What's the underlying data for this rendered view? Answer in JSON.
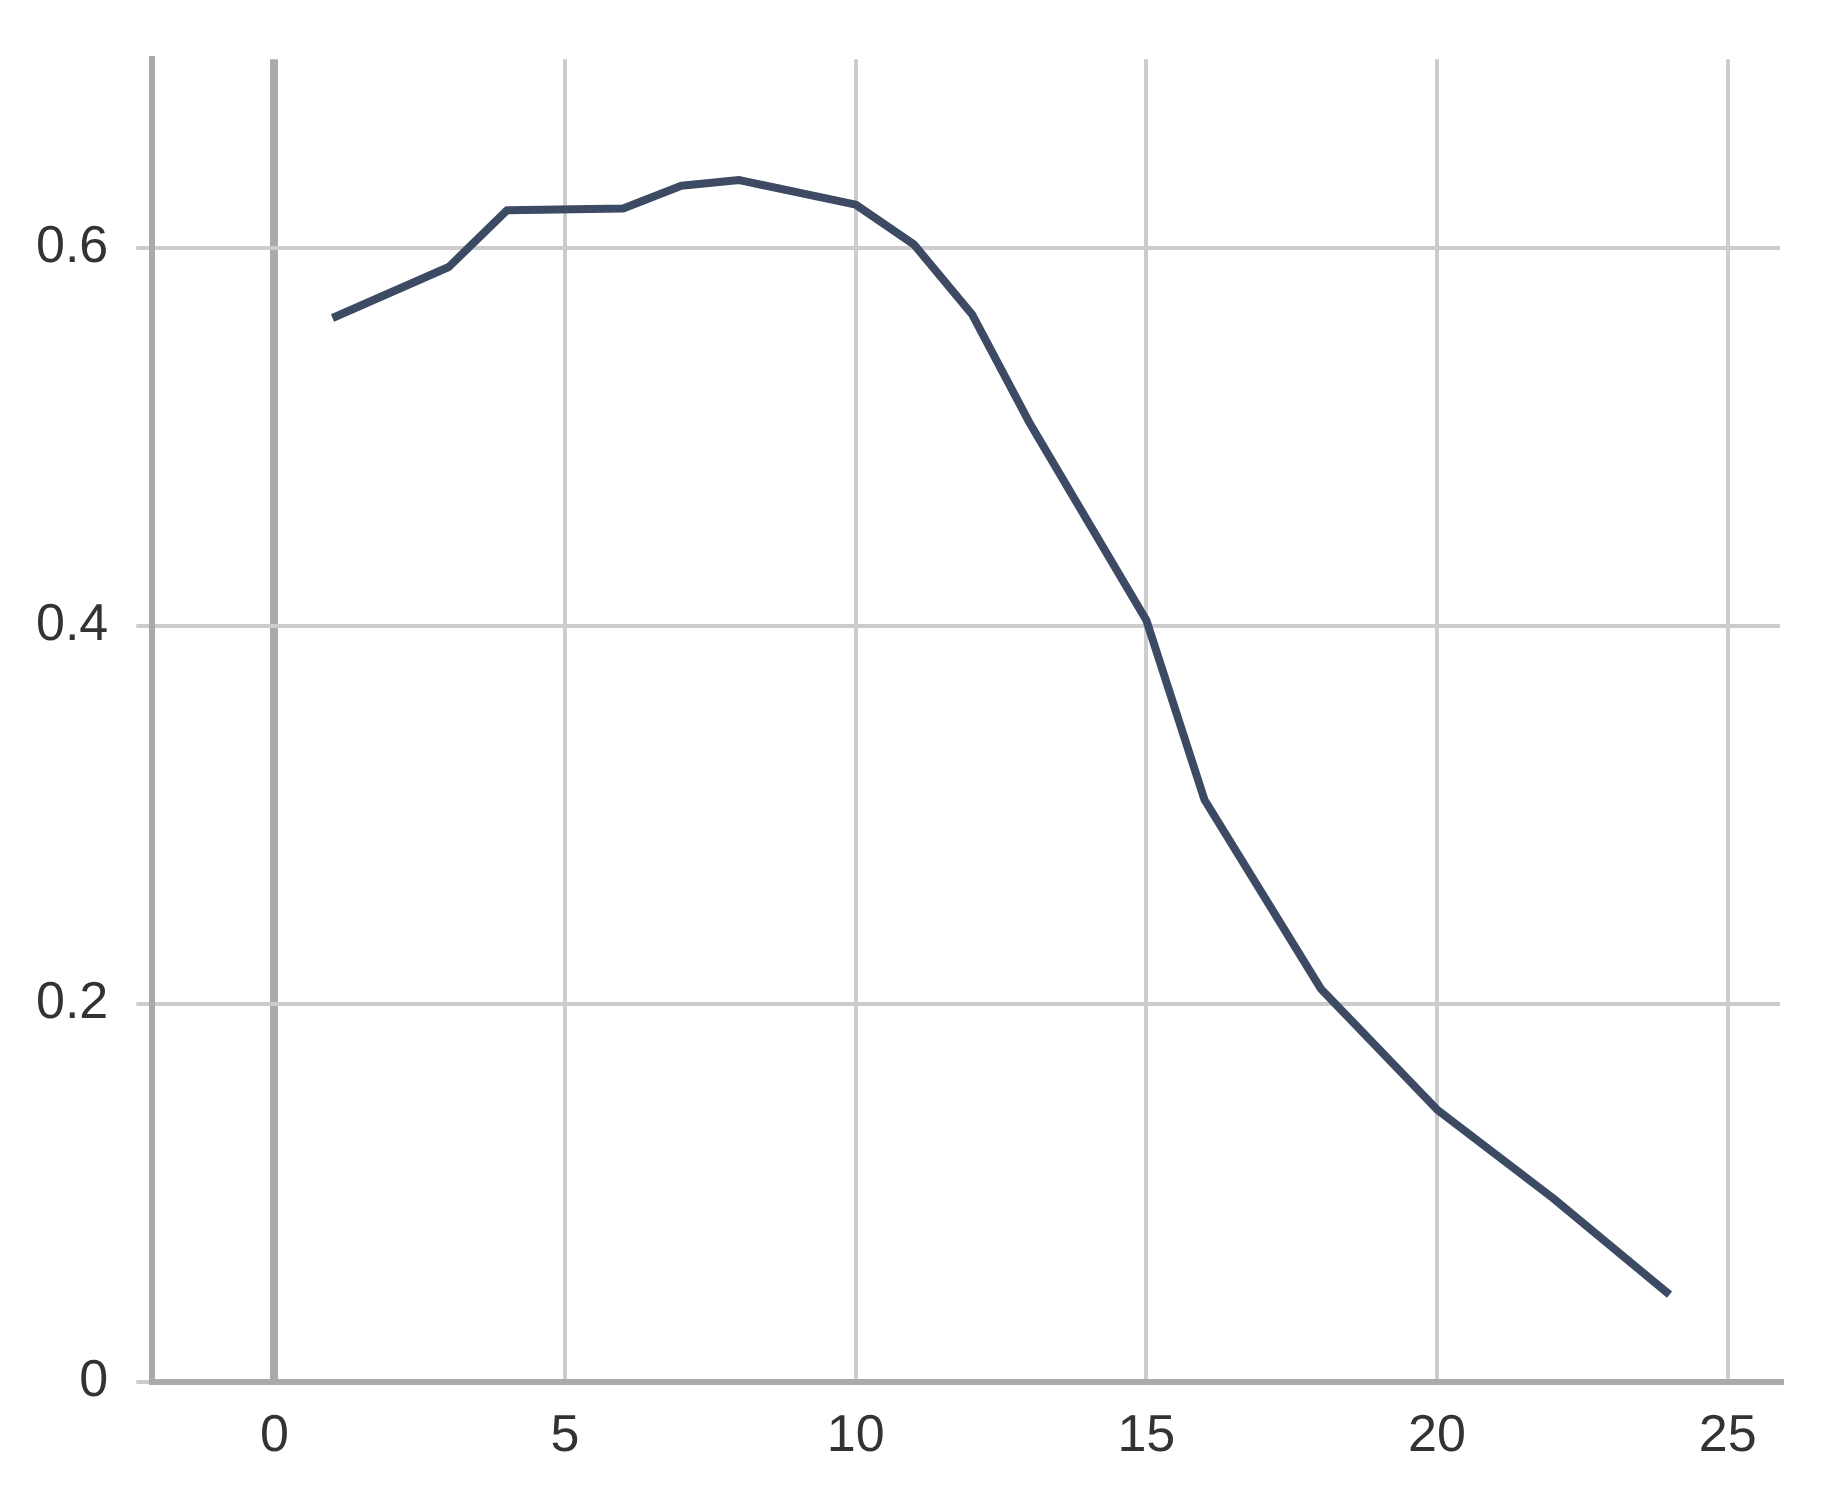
{
  "chart_data": {
    "type": "line",
    "x": [
      1,
      3,
      4,
      6,
      7,
      8,
      10,
      11,
      12,
      13,
      15,
      16,
      18,
      20,
      22,
      24
    ],
    "series": [
      {
        "color": "#3d4a63",
        "values": [
          0.563,
          0.59,
          0.62,
          0.621,
          0.633,
          0.636,
          0.623,
          0.602,
          0.565,
          0.507,
          0.403,
          0.308,
          0.208,
          0.144,
          0.097,
          0.046
        ]
      }
    ],
    "xlim": [
      -2.1,
      25.9
    ],
    "xticks": [
      0,
      5,
      10,
      15,
      20,
      25
    ],
    "ylim": [
      0,
      0.7
    ],
    "yticks": [
      0,
      0.2,
      0.4,
      0.6
    ],
    "grid": true,
    "legend": false,
    "marker": "none",
    "line_style": "solid"
  }
}
